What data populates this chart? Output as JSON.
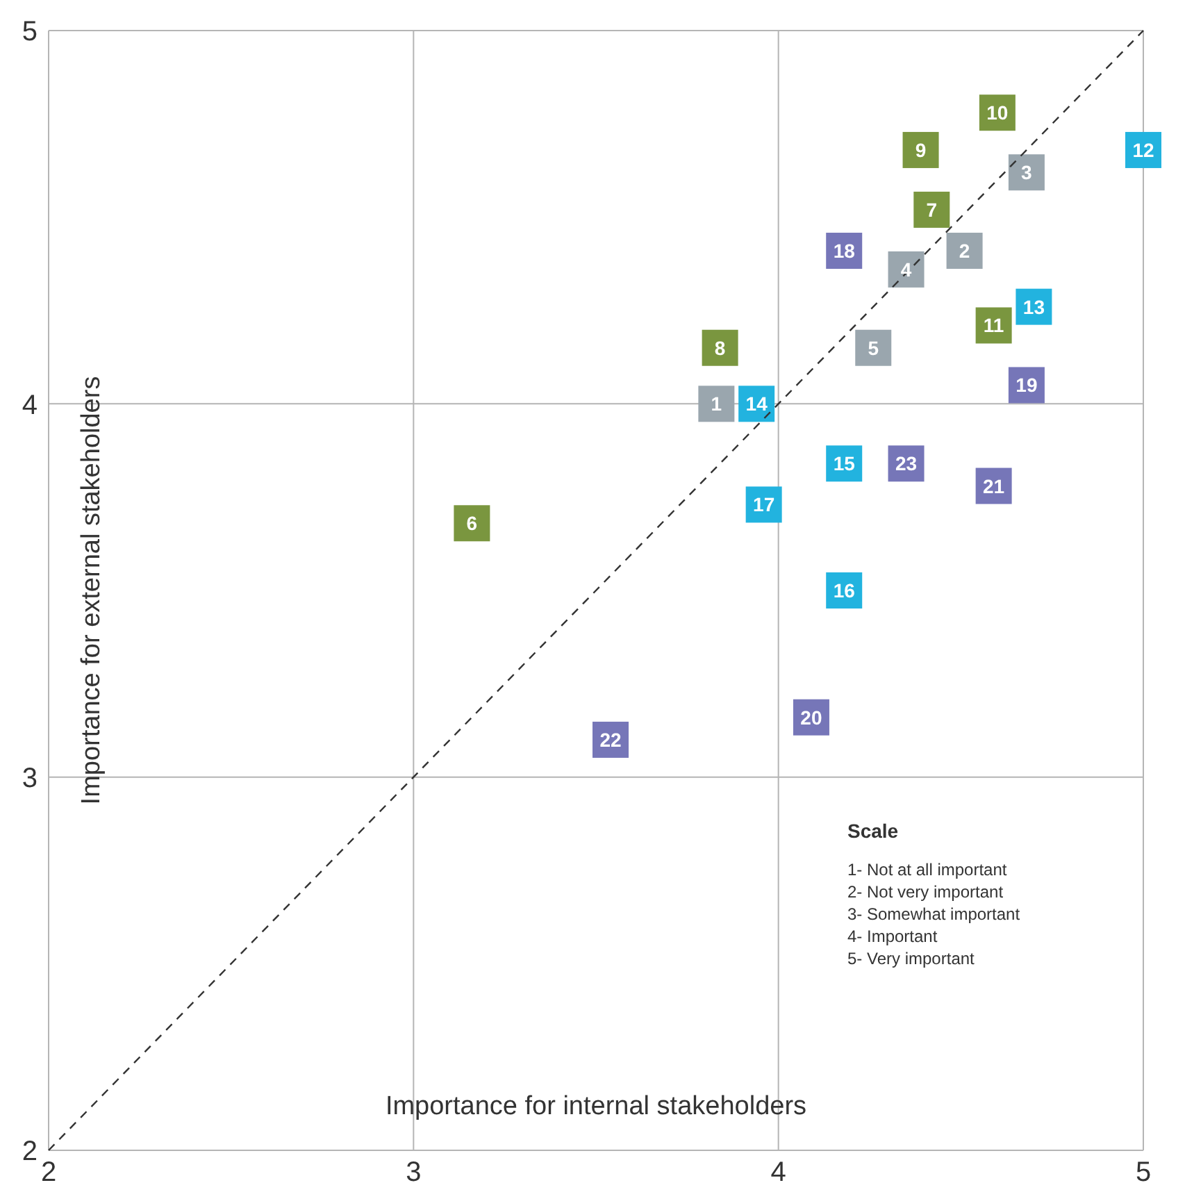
{
  "chart_data": {
    "type": "scatter",
    "xlabel": "Importance for internal stakeholders",
    "ylabel": "Importance for external stakeholders",
    "xlim": [
      2,
      5
    ],
    "ylim": [
      2,
      5
    ],
    "xticks": [
      2,
      3,
      4,
      5
    ],
    "yticks": [
      2,
      3,
      4,
      5
    ],
    "grid": true,
    "marker": "square",
    "series": [
      {
        "color": "#9aa6ae",
        "x": [
          3.83,
          4.51,
          4.68,
          4.35,
          4.26
        ],
        "values": [
          4.0,
          4.41,
          4.62,
          4.36,
          4.15
        ]
      },
      {
        "color": "#7a963f",
        "x": [
          3.16,
          4.42,
          3.84,
          4.39,
          4.6,
          4.59
        ],
        "values": [
          3.68,
          4.52,
          4.15,
          4.68,
          4.78,
          4.21
        ]
      },
      {
        "color": "#22b3df",
        "x": [
          5.0,
          4.7,
          3.94,
          4.18,
          4.18,
          3.96
        ],
        "values": [
          4.68,
          4.26,
          4.0,
          3.84,
          3.5,
          3.73
        ]
      },
      {
        "color": "#7676b8",
        "x": [
          4.18,
          4.68,
          4.09,
          4.59,
          3.54,
          4.35
        ],
        "values": [
          4.41,
          4.05,
          3.16,
          3.78,
          3.1,
          3.84
        ]
      },
      {
        "type": "line",
        "color": "#333333",
        "line_style": "dashed",
        "marker": "none",
        "x": [
          2,
          5
        ],
        "values": [
          2,
          5
        ]
      }
    ],
    "annotations": [
      "Scale",
      "1- Not at all important",
      "2- Not very important",
      "3- Somewhat important",
      "4- Important",
      "5- Very important",
      {
        "text": "1",
        "x": 3.83,
        "y": 4.0
      },
      {
        "text": "2",
        "x": 4.51,
        "y": 4.41
      },
      {
        "text": "3",
        "x": 4.68,
        "y": 4.62
      },
      {
        "text": "4",
        "x": 4.35,
        "y": 4.36
      },
      {
        "text": "5",
        "x": 4.26,
        "y": 4.15
      },
      {
        "text": "6",
        "x": 3.16,
        "y": 3.68
      },
      {
        "text": "7",
        "x": 4.42,
        "y": 4.52
      },
      {
        "text": "8",
        "x": 3.84,
        "y": 4.15
      },
      {
        "text": "9",
        "x": 4.39,
        "y": 4.68
      },
      {
        "text": "10",
        "x": 4.6,
        "y": 4.78
      },
      {
        "text": "11",
        "x": 4.59,
        "y": 4.21
      },
      {
        "text": "12",
        "x": 5.0,
        "y": 4.68
      },
      {
        "text": "13",
        "x": 4.7,
        "y": 4.26
      },
      {
        "text": "14",
        "x": 3.94,
        "y": 4.0
      },
      {
        "text": "15",
        "x": 4.18,
        "y": 3.84
      },
      {
        "text": "16",
        "x": 4.18,
        "y": 3.5
      },
      {
        "text": "17",
        "x": 3.96,
        "y": 3.73
      },
      {
        "text": "18",
        "x": 4.18,
        "y": 4.41
      },
      {
        "text": "19",
        "x": 4.68,
        "y": 4.05
      },
      {
        "text": "20",
        "x": 4.09,
        "y": 3.16
      },
      {
        "text": "21",
        "x": 4.59,
        "y": 3.78
      },
      {
        "text": "22",
        "x": 3.54,
        "y": 3.1
      },
      {
        "text": "23",
        "x": 4.35,
        "y": 3.84
      }
    ]
  }
}
